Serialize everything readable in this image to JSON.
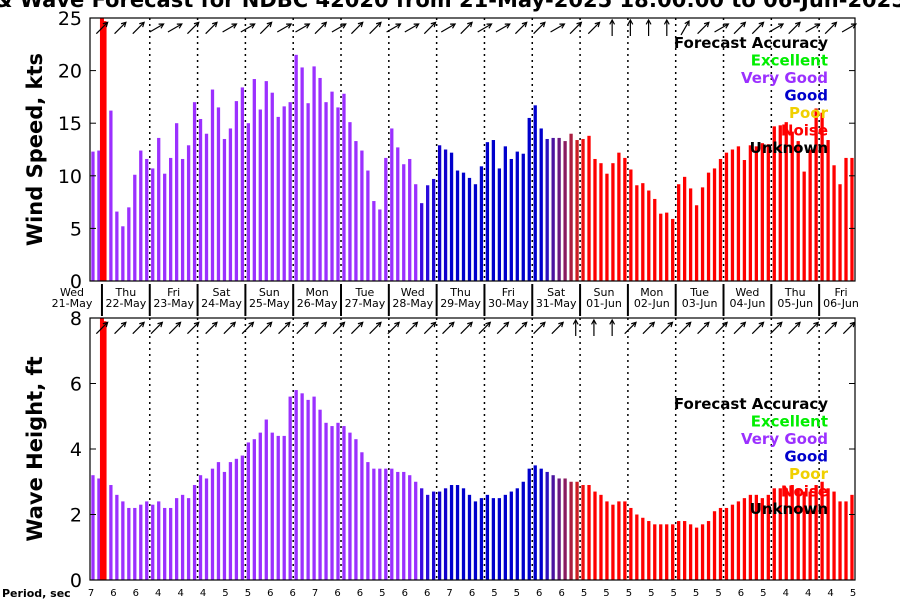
{
  "title": "& Wave Forecast for NDBC 42020 from 21-May-2025 18:00:00 to 06-Jun-2025",
  "legend": {
    "title": "Forecast Accuracy",
    "entries": [
      {
        "label": "Excellent",
        "color": "#00ee00"
      },
      {
        "label": "Very Good",
        "color": "#9b30ff"
      },
      {
        "label": "Good",
        "color": "#0000cc"
      },
      {
        "label": "Poor",
        "color": "#f0d000"
      },
      {
        "label": "Noise",
        "color": "#ff0000"
      },
      {
        "label": "Unknown",
        "color": "#000000"
      }
    ]
  },
  "x_axis": {
    "days": [
      {
        "weekday": "Wed",
        "date": "21-May"
      },
      {
        "weekday": "Thu",
        "date": "22-May"
      },
      {
        "weekday": "Fri",
        "date": "23-May"
      },
      {
        "weekday": "Sat",
        "date": "24-May"
      },
      {
        "weekday": "Sun",
        "date": "25-May"
      },
      {
        "weekday": "Mon",
        "date": "26-May"
      },
      {
        "weekday": "Tue",
        "date": "27-May"
      },
      {
        "weekday": "Wed",
        "date": "28-May"
      },
      {
        "weekday": "Thu",
        "date": "29-May"
      },
      {
        "weekday": "Fri",
        "date": "30-May"
      },
      {
        "weekday": "Sat",
        "date": "31-May"
      },
      {
        "weekday": "Sun",
        "date": "01-Jun"
      },
      {
        "weekday": "Mon",
        "date": "02-Jun"
      },
      {
        "weekday": "Tue",
        "date": "03-Jun"
      },
      {
        "weekday": "Wed",
        "date": "04-Jun"
      },
      {
        "weekday": "Thu",
        "date": "05-Jun"
      },
      {
        "weekday": "Fri",
        "date": "06-Jun"
      }
    ],
    "period_label": "Period, sec",
    "period_values": [
      "7",
      "6",
      "6",
      "4",
      "4",
      "4",
      "5",
      "5",
      "6",
      "6",
      "7",
      "6",
      "6",
      "5",
      "6",
      "6",
      "7",
      "6",
      "5",
      "5",
      "6",
      "6",
      "5",
      "5",
      "5",
      "5",
      "5",
      "5",
      "5",
      "6",
      "5",
      "4",
      "4",
      "4",
      "5"
    ]
  },
  "chart_data": [
    {
      "type": "bar",
      "ylabel": "Wind Speed, kts",
      "ylim": [
        0,
        25
      ],
      "yticks": [
        0,
        5,
        10,
        15,
        20,
        25
      ],
      "x_start": "2025-05-21 18:00",
      "step_hours": 3,
      "current_time": "2025-05-22 00:00",
      "values": [
        12.3,
        12.4,
        24.7,
        16.2,
        6.6,
        5.2,
        7.0,
        10.1,
        12.4,
        11.6,
        10.7,
        13.6,
        10.2,
        11.7,
        15.0,
        11.6,
        12.9,
        17.0,
        15.4,
        14.0,
        18.2,
        16.5,
        13.5,
        14.5,
        17.1,
        18.4,
        15.0,
        19.2,
        16.3,
        19.0,
        17.9,
        15.6,
        16.6,
        17.0,
        21.5,
        20.3,
        16.9,
        20.4,
        19.3,
        17.0,
        18.0,
        16.5,
        17.8,
        15.1,
        13.3,
        12.4,
        10.5,
        7.6,
        6.8,
        11.7,
        14.5,
        12.7,
        11.1,
        11.6,
        9.2,
        7.4,
        9.1,
        9.7,
        12.9,
        12.5,
        12.2,
        10.5,
        10.3,
        9.8,
        9.2,
        10.9,
        13.2,
        13.4,
        10.7,
        12.8,
        11.6,
        12.3,
        12.1,
        15.5,
        16.7,
        14.5,
        13.5,
        13.6,
        13.6,
        13.3,
        14.0,
        13.4,
        13.5,
        13.8,
        11.6,
        11.2,
        10.2,
        11.2,
        12.2,
        11.7,
        10.6,
        9.1,
        9.3,
        8.6,
        7.8,
        6.4,
        6.5,
        5.9,
        9.2,
        9.9,
        8.8,
        7.2,
        8.9,
        10.3,
        10.7,
        11.6,
        12.2,
        12.5,
        12.8,
        11.5,
        12.9,
        12.8,
        13.1,
        13.0,
        14.7,
        14.8,
        15.1,
        14.2,
        13.3,
        10.4,
        12.5,
        16.4,
        16.0,
        13.4,
        11.0,
        9.2,
        11.7,
        11.7
      ],
      "colors": [
        "#9b30ff",
        "#9b30ff",
        "#ff0000",
        "#9b30ff",
        "#9b30ff",
        "#9b30ff",
        "#9b30ff",
        "#9b30ff",
        "#9b30ff",
        "#9b30ff",
        "#9b30ff",
        "#9b30ff",
        "#9b30ff",
        "#9b30ff",
        "#9b30ff",
        "#9b30ff",
        "#9b30ff",
        "#9b30ff",
        "#9b30ff",
        "#9b30ff",
        "#9b30ff",
        "#9b30ff",
        "#9b30ff",
        "#9b30ff",
        "#9b30ff",
        "#9b30ff",
        "#9b30ff",
        "#9b30ff",
        "#9b30ff",
        "#9b30ff",
        "#9b30ff",
        "#9b30ff",
        "#9b30ff",
        "#9b30ff",
        "#9b30ff",
        "#9b30ff",
        "#9b30ff",
        "#9b30ff",
        "#9b30ff",
        "#9b30ff",
        "#9b30ff",
        "#9b30ff",
        "#9b30ff",
        "#9b30ff",
        "#9b30ff",
        "#9b30ff",
        "#9b30ff",
        "#9b30ff",
        "#9b30ff",
        "#9b30ff",
        "#9b30ff",
        "#9b30ff",
        "#9b30ff",
        "#9b30ff",
        "#9b30ff",
        "#3c0ce0",
        "#2a0cdc",
        "#1f08d6",
        "#1100cc",
        "#1100cc",
        "#0000cc",
        "#0000cc",
        "#0000cc",
        "#0000cc",
        "#0000cc",
        "#0000cc",
        "#0000cc",
        "#0000cc",
        "#0000cc",
        "#0000cc",
        "#0000cc",
        "#0000cc",
        "#0000cc",
        "#0000cc",
        "#0000cc",
        "#0000cc",
        "#2a10c0",
        "#4a14a0",
        "#6a1880",
        "#8a1c60",
        "#aa1e40",
        "#cc1e22",
        "#ee1010",
        "#ff0000",
        "#ff0000",
        "#ff0000",
        "#ff0000",
        "#ff0000",
        "#ff0000",
        "#ff0000",
        "#ff0000",
        "#ff0000",
        "#ff0000",
        "#ff0000",
        "#ff0000",
        "#ff0000",
        "#ff0000",
        "#ff0000",
        "#ff0000",
        "#ff0000",
        "#ff0000",
        "#ff0000",
        "#ff0000",
        "#ff0000",
        "#ff0000",
        "#ff0000",
        "#ff0000",
        "#ff0000",
        "#ff0000",
        "#ff0000",
        "#ff0000",
        "#ff0000",
        "#ff0000",
        "#ff0000",
        "#ff0000",
        "#ff0000",
        "#ff0000",
        "#ff0000",
        "#ff0000",
        "#ff0000",
        "#ff0000",
        "#ff0000",
        "#ff0000",
        "#ff0000",
        "#ff0000",
        "#ff0000",
        "#ff0000",
        "#ff0000"
      ],
      "direction_deg": [
        135,
        135,
        135,
        150,
        150,
        135,
        135,
        150,
        150,
        135,
        150,
        150,
        135,
        150,
        135,
        135,
        150,
        150,
        135,
        150,
        135,
        150,
        150,
        135,
        135,
        150,
        135,
        135,
        90,
        90,
        90,
        90,
        120,
        135,
        150,
        135,
        135,
        150,
        135,
        150,
        135,
        150
      ]
    },
    {
      "type": "bar",
      "ylabel": "Wave Height, ft",
      "ylim": [
        0,
        8
      ],
      "yticks": [
        0,
        2,
        4,
        6,
        8
      ],
      "x_start": "2025-05-21 18:00",
      "step_hours": 3,
      "current_time": "2025-05-22 00:00",
      "values": [
        3.2,
        3.1,
        7.9,
        2.9,
        2.6,
        2.4,
        2.2,
        2.2,
        2.3,
        2.4,
        2.3,
        2.4,
        2.2,
        2.2,
        2.5,
        2.6,
        2.5,
        2.9,
        3.2,
        3.1,
        3.4,
        3.6,
        3.3,
        3.6,
        3.7,
        3.8,
        4.2,
        4.3,
        4.5,
        4.9,
        4.5,
        4.4,
        4.4,
        5.6,
        5.8,
        5.7,
        5.5,
        5.6,
        5.2,
        4.8,
        4.7,
        4.8,
        4.7,
        4.5,
        4.3,
        3.9,
        3.6,
        3.4,
        3.4,
        3.4,
        3.4,
        3.3,
        3.3,
        3.2,
        3.0,
        2.8,
        2.6,
        2.7,
        2.7,
        2.8,
        2.9,
        2.9,
        2.8,
        2.6,
        2.4,
        2.5,
        2.6,
        2.5,
        2.5,
        2.6,
        2.7,
        2.8,
        3.0,
        3.4,
        3.5,
        3.4,
        3.3,
        3.2,
        3.1,
        3.1,
        3.0,
        3.0,
        2.9,
        2.9,
        2.7,
        2.6,
        2.4,
        2.3,
        2.4,
        2.4,
        2.2,
        2.0,
        1.9,
        1.8,
        1.7,
        1.7,
        1.7,
        1.7,
        1.8,
        1.8,
        1.7,
        1.6,
        1.7,
        1.8,
        2.1,
        2.2,
        2.2,
        2.3,
        2.4,
        2.5,
        2.6,
        2.6,
        2.5,
        2.6,
        2.8,
        2.8,
        2.8,
        2.9,
        2.8,
        2.7,
        2.7,
        2.9,
        3.0,
        2.8,
        2.7,
        2.4,
        2.4,
        2.6
      ],
      "colors": [
        "#9b30ff",
        "#9b30ff",
        "#ff0000",
        "#9b30ff",
        "#9b30ff",
        "#9b30ff",
        "#9b30ff",
        "#9b30ff",
        "#9b30ff",
        "#9b30ff",
        "#9b30ff",
        "#9b30ff",
        "#9b30ff",
        "#9b30ff",
        "#9b30ff",
        "#9b30ff",
        "#9b30ff",
        "#9b30ff",
        "#9b30ff",
        "#9b30ff",
        "#9b30ff",
        "#9b30ff",
        "#9b30ff",
        "#9b30ff",
        "#9b30ff",
        "#9b30ff",
        "#9b30ff",
        "#9b30ff",
        "#9b30ff",
        "#9b30ff",
        "#9b30ff",
        "#9b30ff",
        "#9b30ff",
        "#9b30ff",
        "#9b30ff",
        "#9b30ff",
        "#9b30ff",
        "#9b30ff",
        "#9b30ff",
        "#9b30ff",
        "#9b30ff",
        "#9b30ff",
        "#9b30ff",
        "#9b30ff",
        "#9b30ff",
        "#9b30ff",
        "#9b30ff",
        "#9b30ff",
        "#9b30ff",
        "#9b30ff",
        "#9b30ff",
        "#9b30ff",
        "#9b30ff",
        "#9b30ff",
        "#9b30ff",
        "#3c0ce0",
        "#2a0cdc",
        "#1f08d6",
        "#1100cc",
        "#1100cc",
        "#0000cc",
        "#0000cc",
        "#0000cc",
        "#0000cc",
        "#0000cc",
        "#0000cc",
        "#0000cc",
        "#0000cc",
        "#0000cc",
        "#0000cc",
        "#0000cc",
        "#0000cc",
        "#0000cc",
        "#0000cc",
        "#0000cc",
        "#0000cc",
        "#2a10c0",
        "#4a14a0",
        "#6a1880",
        "#8a1c60",
        "#aa1e40",
        "#cc1e22",
        "#ee1010",
        "#ff0000",
        "#ff0000",
        "#ff0000",
        "#ff0000",
        "#ff0000",
        "#ff0000",
        "#ff0000",
        "#ff0000",
        "#ff0000",
        "#ff0000",
        "#ff0000",
        "#ff0000",
        "#ff0000",
        "#ff0000",
        "#ff0000",
        "#ff0000",
        "#ff0000",
        "#ff0000",
        "#ff0000",
        "#ff0000",
        "#ff0000",
        "#ff0000",
        "#ff0000",
        "#ff0000",
        "#ff0000",
        "#ff0000",
        "#ff0000",
        "#ff0000",
        "#ff0000",
        "#ff0000",
        "#ff0000",
        "#ff0000",
        "#ff0000",
        "#ff0000",
        "#ff0000",
        "#ff0000",
        "#ff0000",
        "#ff0000",
        "#ff0000",
        "#ff0000",
        "#ff0000",
        "#ff0000",
        "#ff0000",
        "#ff0000",
        "#ff0000"
      ],
      "direction_deg": [
        135,
        135,
        135,
        135,
        135,
        135,
        135,
        135,
        135,
        135,
        135,
        135,
        135,
        135,
        135,
        135,
        135,
        135,
        135,
        135,
        135,
        135,
        135,
        135,
        135,
        135,
        90,
        90,
        90,
        135,
        135,
        135,
        135,
        135,
        135,
        135,
        135,
        135,
        135,
        135,
        135,
        135
      ]
    }
  ]
}
